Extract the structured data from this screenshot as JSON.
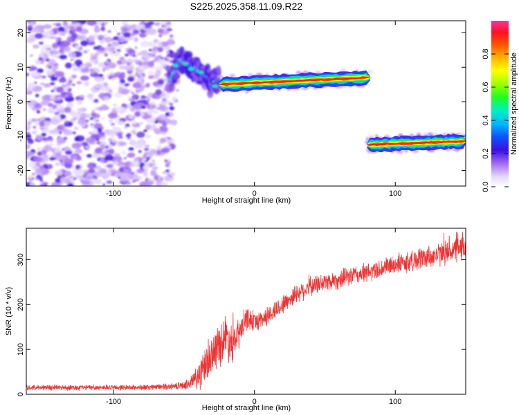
{
  "figure_title": "S225.2025.358.11.09.R22",
  "chart_data": [
    {
      "type": "heatmap",
      "title": "S225.2025.358.11.09.R22",
      "xlabel": "Height of straight line (km)",
      "ylabel": "Frequency (Hz)",
      "xlim": [
        -162,
        150
      ],
      "ylim": [
        -24.5,
        23.5
      ],
      "xticks": [
        -100,
        0,
        100
      ],
      "yticks": [
        -20,
        -10,
        0,
        10,
        20
      ],
      "xtick_labels": [
        "-100",
        "0",
        "100"
      ],
      "ytick_labels": [
        "-20",
        "-10",
        "0",
        "10",
        "20"
      ],
      "colorbar": {
        "label": "Normalized spectral amplitude",
        "range": [
          0,
          1
        ],
        "ticks": [
          "0.0",
          "0.2",
          "0.4",
          "0.6",
          "0.8"
        ]
      },
      "features": [
        {
          "name": "noise region",
          "x_range": [
            -162,
            -58
          ],
          "freq_range": [
            -24.5,
            23.5
          ],
          "amplitude": 0.1
        },
        {
          "name": "emerging signal",
          "x_range": [
            -60,
            -25
          ],
          "freq_center": [
            5,
            13,
            9,
            3
          ],
          "amplitude": 0.3
        },
        {
          "name": "main tone",
          "x_range": [
            -25,
            82
          ],
          "freq_center": [
            5,
            7
          ],
          "amplitude": 0.95
        },
        {
          "name": "second tone",
          "x_range": [
            80,
            150
          ],
          "freq_center": [
            -12.5,
            -11.5
          ],
          "amplitude": 0.95
        }
      ]
    },
    {
      "type": "line",
      "title": "",
      "xlabel": "Height of straight line (km)",
      "ylabel": "SNR (10 * v/v)",
      "xlim": [
        -162,
        150
      ],
      "ylim": [
        0,
        370
      ],
      "xticks": [
        -100,
        0,
        100
      ],
      "yticks": [
        0,
        100,
        200,
        300
      ],
      "xtick_labels": [
        "-100",
        "0",
        "100"
      ],
      "ytick_labels": [
        "0",
        "100",
        "200",
        "300"
      ],
      "series": [
        {
          "name": "SNR",
          "color": "#ee3333",
          "x": [
            -162,
            -140,
            -120,
            -100,
            -80,
            -60,
            -50,
            -45,
            -40,
            -35,
            -30,
            -25,
            -20,
            -15,
            -10,
            -5,
            0,
            10,
            20,
            30,
            40,
            50,
            60,
            70,
            80,
            90,
            100,
            110,
            120,
            130,
            140,
            150
          ],
          "y": [
            15,
            15,
            15,
            15,
            15,
            17,
            20,
            25,
            40,
            60,
            90,
            110,
            130,
            110,
            140,
            170,
            160,
            175,
            200,
            225,
            240,
            250,
            255,
            265,
            270,
            280,
            290,
            295,
            305,
            310,
            320,
            325
          ],
          "noise_amplitude": [
            7,
            7,
            7,
            7,
            7,
            8,
            10,
            20,
            40,
            45,
            50,
            55,
            60,
            50,
            40,
            30,
            25,
            25,
            25,
            25,
            25,
            25,
            25,
            25,
            25,
            25,
            25,
            28,
            30,
            30,
            32,
            35
          ]
        }
      ]
    }
  ]
}
